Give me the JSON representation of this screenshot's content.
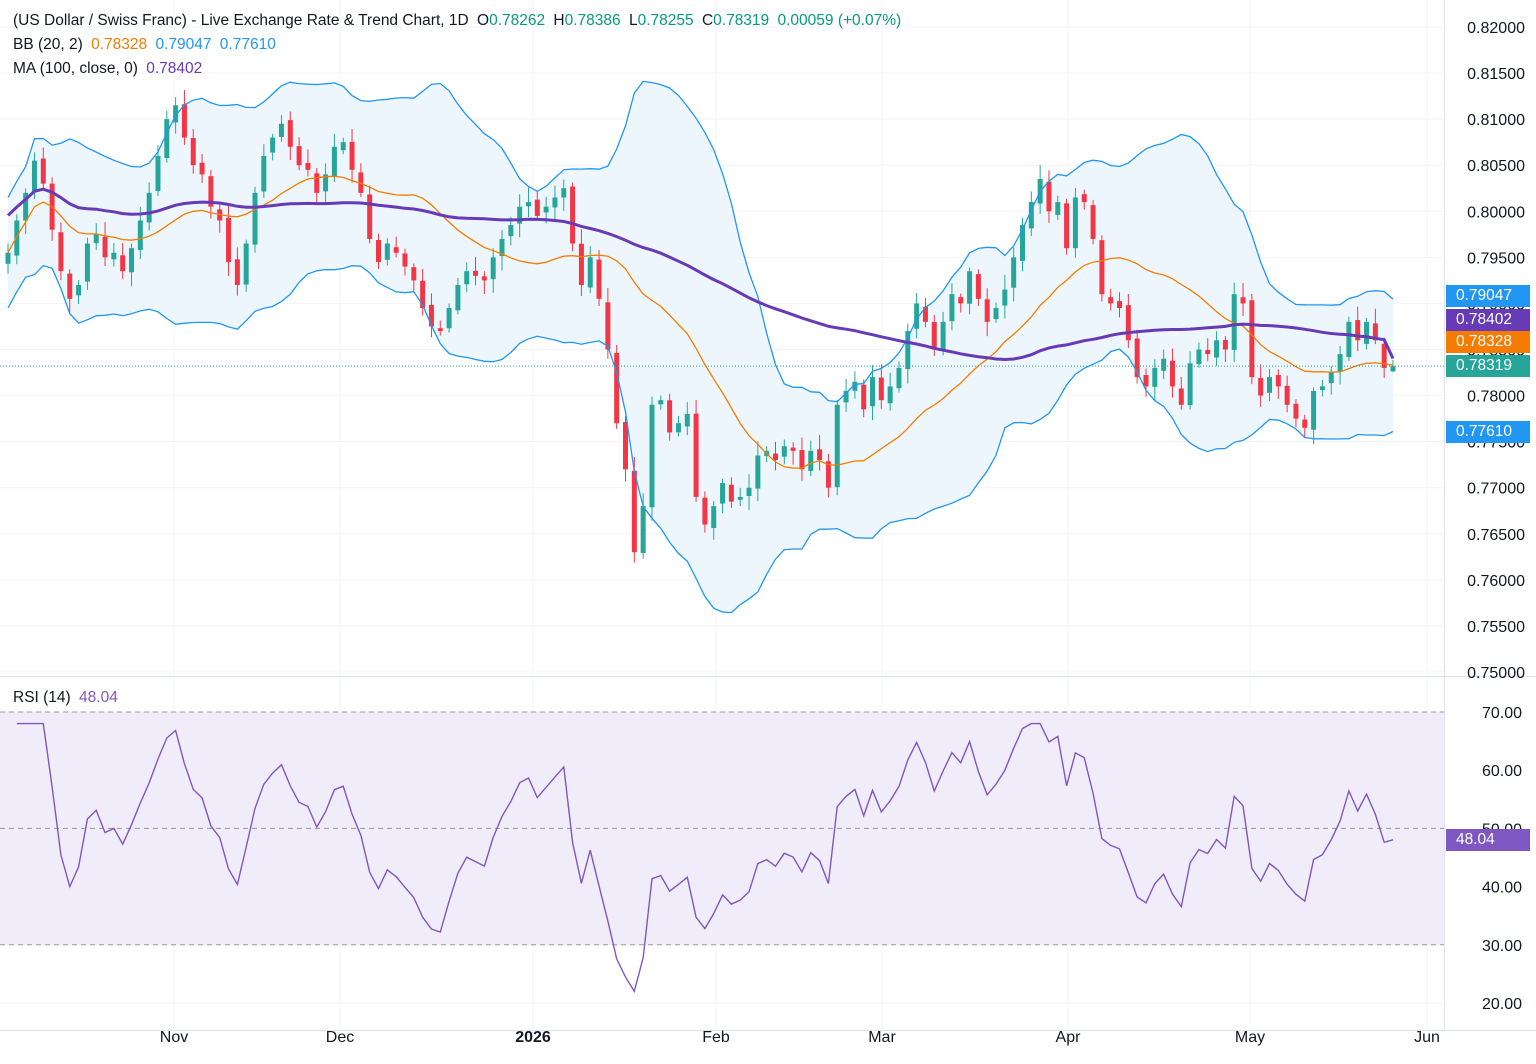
{
  "header": {
    "title": "(US Dollar / Swiss Franc) - Live Exchange Rate & Trend Chart, 1D",
    "open_label": "O",
    "open": "0.78262",
    "high_label": "H",
    "high": "0.78386",
    "low_label": "L",
    "low": "0.78255",
    "close_label": "C",
    "close": "0.78319",
    "change": "0.00059 (+0.07%)",
    "bb_label": "BB (20, 2)",
    "bb_mid": "0.78328",
    "bb_upper": "0.79047",
    "bb_lower": "0.77610",
    "ma_label": "MA (100, close, 0)",
    "ma_value": "0.78402",
    "rsi_label": "RSI (14)",
    "rsi_value": "48.04"
  },
  "price_tags": {
    "bb_upper": "0.79047",
    "ma": "0.78402",
    "bb_mid": "0.78328",
    "close": "0.78319",
    "bb_lower": "0.77610",
    "rsi": "48.04"
  },
  "colors": {
    "up": "#26a69a",
    "down": "#f23645",
    "bb_band": "#2196f3",
    "bb_mid": "#f57c00",
    "ma": "#673ab7",
    "rsi": "#7e57c2",
    "rsi_fill": "#f1ecf9",
    "bb_fill": "#eef6fd",
    "tag_close": "#26a69a"
  },
  "chart_data": [
    {
      "type": "candlestick",
      "title": "(US Dollar / Swiss Franc) - Live Exchange Rate & Trend Chart, 1D",
      "ylim": [
        0.75,
        0.82
      ],
      "yticks": [
        "0.75000",
        "0.75500",
        "0.76000",
        "0.76500",
        "0.77000",
        "0.77500",
        "0.78000",
        "0.78500",
        "0.79000",
        "0.79500",
        "0.80000",
        "0.80500",
        "0.81000",
        "0.81500",
        "0.82000"
      ],
      "xticks": [
        "Nov",
        "Dec",
        "2026",
        "Feb",
        "Mar",
        "Apr",
        "May",
        "Jun"
      ],
      "grid": true,
      "close_path": [
        0.7955,
        0.799,
        0.802,
        0.8055,
        0.803,
        0.798,
        0.7935,
        0.7905,
        0.792,
        0.7965,
        0.7975,
        0.795,
        0.7955,
        0.7935,
        0.796,
        0.799,
        0.802,
        0.806,
        0.81,
        0.8115,
        0.808,
        0.805,
        0.804,
        0.8005,
        0.799,
        0.7945,
        0.792,
        0.7965,
        0.802,
        0.806,
        0.808,
        0.8095,
        0.807,
        0.805,
        0.8045,
        0.802,
        0.804,
        0.807,
        0.8075,
        0.8045,
        0.802,
        0.797,
        0.7945,
        0.7965,
        0.7955,
        0.794,
        0.7925,
        0.7895,
        0.7875,
        0.787,
        0.7895,
        0.792,
        0.7935,
        0.793,
        0.7925,
        0.795,
        0.797,
        0.7985,
        0.8005,
        0.801,
        0.7995,
        0.8005,
        0.8015,
        0.8025,
        0.7965,
        0.792,
        0.795,
        0.7905,
        0.785,
        0.777,
        0.772,
        0.763,
        0.768,
        0.779,
        0.7795,
        0.776,
        0.777,
        0.778,
        0.769,
        0.766,
        0.768,
        0.7705,
        0.7685,
        0.769,
        0.77,
        0.7735,
        0.774,
        0.773,
        0.7745,
        0.774,
        0.772,
        0.774,
        0.773,
        0.77,
        0.779,
        0.7805,
        0.7815,
        0.7785,
        0.782,
        0.7795,
        0.781,
        0.783,
        0.787,
        0.79,
        0.788,
        0.785,
        0.788,
        0.791,
        0.79,
        0.7935,
        0.7905,
        0.788,
        0.7895,
        0.7915,
        0.795,
        0.7985,
        0.801,
        0.8035,
        0.8,
        0.801,
        0.796,
        0.8015,
        0.801,
        0.797,
        0.791,
        0.79,
        0.7895,
        0.786,
        0.782,
        0.781,
        0.783,
        0.784,
        0.781,
        0.779,
        0.7835,
        0.785,
        0.7845,
        0.786,
        0.785,
        0.791,
        0.79,
        0.782,
        0.78,
        0.782,
        0.781,
        0.779,
        0.7775,
        0.7765,
        0.7805,
        0.781,
        0.7825,
        0.7845,
        0.788,
        0.786,
        0.788,
        0.786,
        0.783,
        0.7833
      ],
      "series": [
        {
          "name": "BB (20, 2)",
          "value": "0.78328"
        },
        {
          "name": "MA (100, close, 0)",
          "value": "0.78402"
        }
      ],
      "last": {
        "open": 0.78262,
        "high": 0.78386,
        "low": 0.78255,
        "close": 0.78319
      },
      "bollinger": {
        "mid": 0.78328,
        "upper": 0.79047,
        "lower": 0.7761
      },
      "ma100": 0.78402
    },
    {
      "type": "line",
      "title": "RSI (14)",
      "ylim": [
        20,
        70
      ],
      "yticks": [
        "20.00",
        "30.00",
        "40.00",
        "50.00",
        "60.00",
        "70.00"
      ],
      "levels": [
        30,
        50,
        70
      ],
      "last": 48.04
    }
  ]
}
